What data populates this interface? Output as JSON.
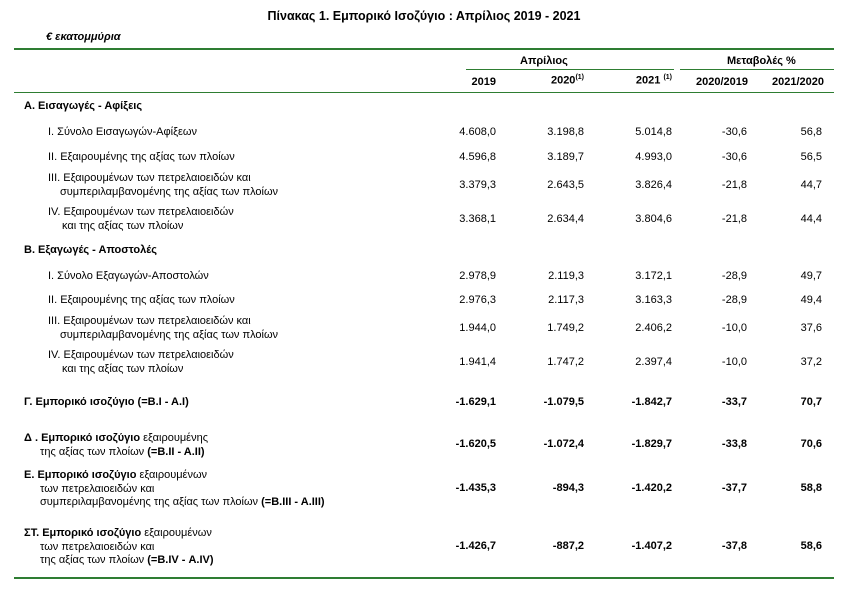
{
  "title": "Πίνακας 1. Εμπορικό Ισοζύγιο :  Απρίλιος 2019  - 2021",
  "unit": "€ εκατομμύρια",
  "header": {
    "april": "Απρίλιος",
    "changes": "Μεταβολές %",
    "col_2019": "2019",
    "col_2020": "2020",
    "col_2020_note": "(1)",
    "col_2021": "2021",
    "col_2021_note": "(1)",
    "col_2020_2019": "2020/2019",
    "col_2021_2020": "2021/2020"
  },
  "section_a": {
    "title": "Α. Εισαγωγές - Αφίξεις",
    "rows": [
      {
        "label": [
          "I.  Σύνολο Εισαγωγών-Αφίξεων"
        ],
        "v2019": "4.608,0",
        "v2020": "3.198,8",
        "v2021": "5.014,8",
        "ch1": "-30,6",
        "ch2": "56,8"
      },
      {
        "label": [
          "II.  Εξαιρουμένης  της αξίας των πλοίων"
        ],
        "v2019": "4.596,8",
        "v2020": "3.189,7",
        "v2021": "4.993,0",
        "ch1": "-30,6",
        "ch2": "56,5"
      },
      {
        "label": [
          "III. Εξαιρουμένων των πετρελαιοειδών και",
          "συμπεριλαμβανομένης της αξίας των πλοίων"
        ],
        "v2019": "3.379,3",
        "v2020": "2.643,5",
        "v2021": "3.826,4",
        "ch1": "-21,8",
        "ch2": "44,7"
      },
      {
        "label": [
          "IV. Εξαιρουμένων των πετρελαιοειδών",
          "και της αξίας των πλοίων"
        ],
        "v2019": "3.368,1",
        "v2020": "2.634,4",
        "v2021": "3.804,6",
        "ch1": "-21,8",
        "ch2": "44,4"
      }
    ]
  },
  "section_b": {
    "title": "Β. Εξαγωγές - Αποστολές",
    "rows": [
      {
        "label": [
          "I.  Σύνολο Εξαγωγών-Αποστολών"
        ],
        "v2019": "2.978,9",
        "v2020": "2.119,3",
        "v2021": "3.172,1",
        "ch1": "-28,9",
        "ch2": "49,7"
      },
      {
        "label": [
          "II.  Εξαιρουμένης  της αξίας των πλοίων"
        ],
        "v2019": "2.976,3",
        "v2020": "2.117,3",
        "v2021": "3.163,3",
        "ch1": "-28,9",
        "ch2": "49,4"
      },
      {
        "label": [
          "III. Εξαιρουμένων των πετρελαιοειδών και",
          "συμπεριλαμβανομένης της αξίας των πλοίων"
        ],
        "v2019": "1.944,0",
        "v2020": "1.749,2",
        "v2021": "2.406,2",
        "ch1": "-10,0",
        "ch2": "37,6"
      },
      {
        "label": [
          "IV. Εξαιρουμένων των πετρελαιοειδών",
          "και της αξίας των πλοίων"
        ],
        "v2019": "1.941,4",
        "v2020": "1.747,2",
        "v2021": "2.397,4",
        "ch1": "-10,0",
        "ch2": "37,2"
      }
    ]
  },
  "balances": [
    {
      "bold_label": "Γ. Εμπορικό ισοζύγιο (=Β.Ι - Α.Ι)",
      "lines": [],
      "bold_tail": "",
      "v2019": "-1.629,1",
      "v2020": "-1.079,5",
      "v2021": "-1.842,7",
      "ch1": "-33,7",
      "ch2": "70,7"
    },
    {
      "bold_label": "Δ . Εμπορικό ισοζύγιο",
      "first_rest": " εξαιρουμένης",
      "lines": [
        "της αξίας των πλοίων "
      ],
      "bold_tail": "(=Β.ΙΙ - Α.ΙΙ)",
      "v2019": "-1.620,5",
      "v2020": "-1.072,4",
      "v2021": "-1.829,7",
      "ch1": "-33,8",
      "ch2": "70,6"
    },
    {
      "bold_label": "Ε. Εμπορικό ισοζύγιο",
      "first_rest": " εξαιρουμένων",
      "lines": [
        "των πετρελαιοειδών και",
        "συμπεριλαμβανομένης της αξίας των πλοίων "
      ],
      "bold_tail": "(=Β.ΙΙΙ - Α.ΙΙΙ)",
      "v2019": "-1.435,3",
      "v2020": "-894,3",
      "v2021": "-1.420,2",
      "ch1": "-37,7",
      "ch2": "58,8"
    },
    {
      "bold_label": "ΣΤ. Εμπορικό ισοζύγιο",
      "first_rest": " εξαιρουμένων",
      "lines": [
        "των πετρελαιοειδών και",
        "της αξίας των πλοίων "
      ],
      "bold_tail": "(=Β.IV - Α.IV)",
      "v2019": "-1.426,7",
      "v2020": "-887,2",
      "v2021": "-1.407,2",
      "ch1": "-37,8",
      "ch2": "58,6"
    }
  ]
}
